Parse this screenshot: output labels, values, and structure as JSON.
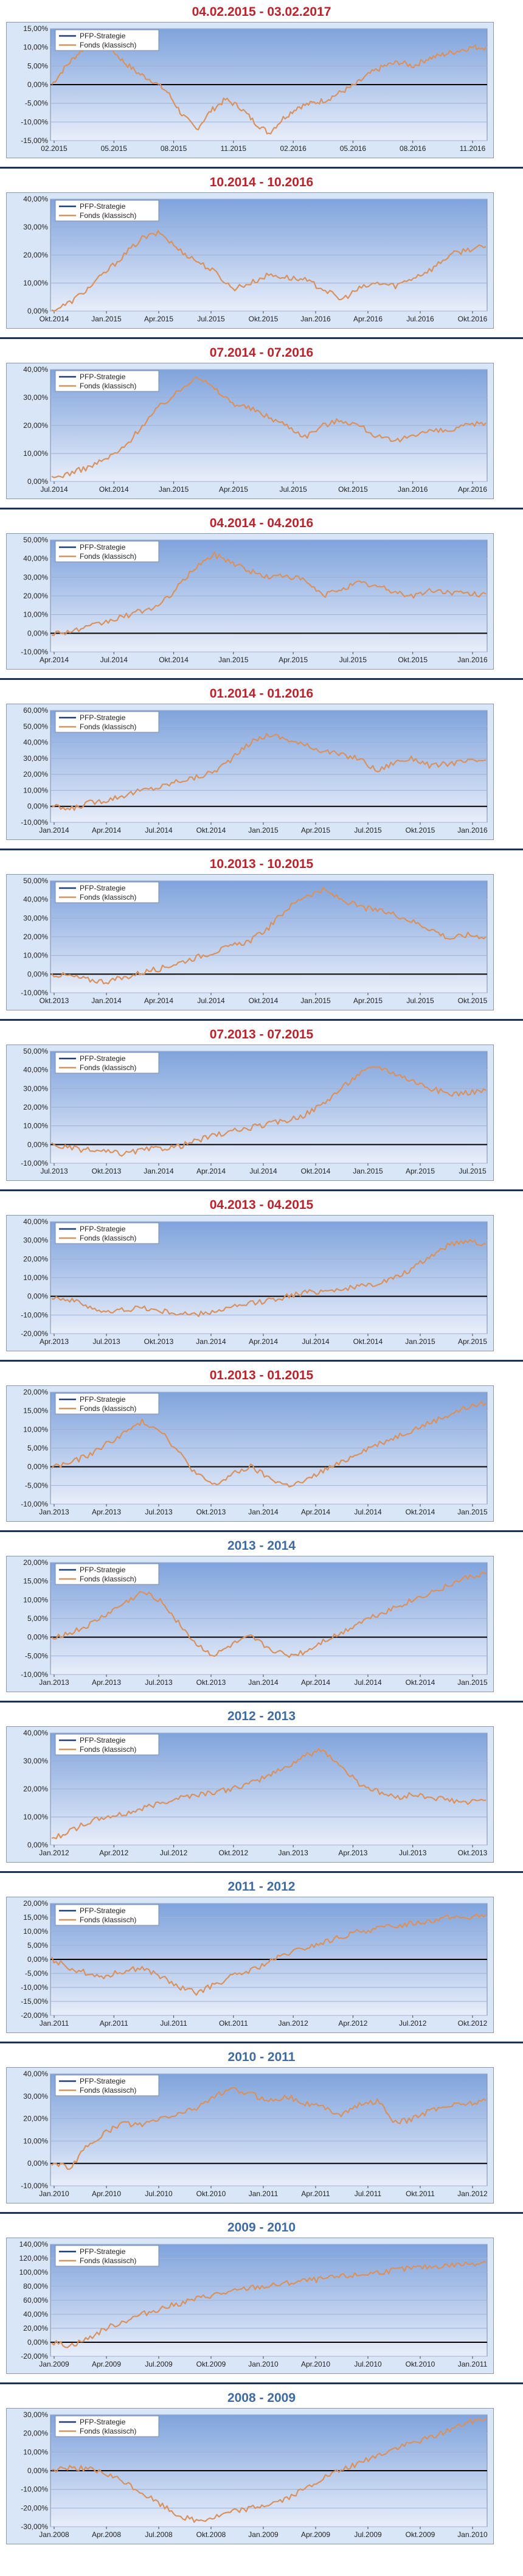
{
  "legend": [
    "PFP-Strategie",
    "Fonds (klassisch)"
  ],
  "colors": {
    "strategy": "#1f3d7a",
    "fonds": "#d9925e",
    "red_title": "#c0202a",
    "blue_title": "#3e6aa6",
    "bg_top": "#7fa3dc",
    "bg_bottom": "#e8eefa"
  },
  "charts": [
    {
      "title": "04.02.2015 - 03.02.2017",
      "chart_data": {
        "type": "line",
        "title": "04.02.2015 - 03.02.2017",
        "ylim": [
          -15,
          15
        ],
        "yticks": [
          "15,00%",
          "10,00%",
          "5,00%",
          "0,00%",
          "-5,00%",
          "-10,00%",
          "-15,00%"
        ],
        "xlabels": [
          "02.2015",
          "05.2015",
          "08.2015",
          "11.2015",
          "02.2016",
          "05.2016",
          "08.2016",
          "11.2016"
        ],
        "legend": [
          "PFP-Strategie",
          "Fonds (klassisch)"
        ],
        "series": [
          {
            "name": "Fonds (klassisch)",
            "values": [
              0,
              5,
              9,
              12,
              10,
              6,
              3,
              1,
              -2,
              -8,
              -12,
              -7,
              -4,
              -6,
              -10,
              -13,
              -9,
              -6,
              -5,
              -4,
              -2,
              0,
              3,
              5,
              6,
              5,
              7,
              8,
              9,
              10,
              10
            ]
          }
        ]
      }
    },
    {
      "title": "10.2014 - 10.2016",
      "chart_data": {
        "type": "line",
        "title": "10.2014 - 10.2016",
        "ylim": [
          0,
          40
        ],
        "yticks": [
          "40,00%",
          "30,00%",
          "20,00%",
          "10,00%",
          "0,00%"
        ],
        "xlabels": [
          "Okt.2014",
          "Jan.2015",
          "Apr.2015",
          "Jul.2015",
          "Okt.2015",
          "Jan.2016",
          "Apr.2016",
          "Jul.2016",
          "Okt.2016"
        ],
        "legend": [
          "PFP-Strategie",
          "Fonds (klassisch)"
        ],
        "series": [
          {
            "name": "Fonds (klassisch)",
            "values": [
              0,
              3,
              8,
              14,
              20,
              26,
              28,
              22,
              18,
              14,
              8,
              10,
              13,
              12,
              11,
              8,
              4,
              8,
              10,
              9,
              12,
              15,
              20,
              22,
              23
            ]
          }
        ]
      }
    },
    {
      "title": "07.2014 - 07.2016",
      "chart_data": {
        "type": "line",
        "title": "07.2014 - 07.2016",
        "ylim": [
          0,
          40
        ],
        "yticks": [
          "40,00%",
          "30,00%",
          "20,00%",
          "10,00%",
          "0,00%"
        ],
        "xlabels": [
          "Jul.2014",
          "Okt.2014",
          "Jan.2015",
          "Apr.2015",
          "Jul.2015",
          "Okt.2015",
          "Jan.2016",
          "Apr.2016"
        ],
        "legend": [
          "PFP-Strategie",
          "Fonds (klassisch)"
        ],
        "series": [
          {
            "name": "Fonds (klassisch)",
            "values": [
              1,
              3,
              5,
              8,
              12,
              20,
              27,
              32,
              38,
              33,
              28,
              26,
              23,
              20,
              16,
              20,
              22,
              20,
              16,
              14,
              17,
              18,
              18,
              20,
              21
            ]
          }
        ]
      }
    },
    {
      "title": "04.2014 - 04.2016",
      "chart_data": {
        "type": "line",
        "title": "04.2014 - 04.2016",
        "ylim": [
          -10,
          50
        ],
        "yticks": [
          "50,00%",
          "40,00%",
          "30,00%",
          "20,00%",
          "10,00%",
          "0,00%",
          "-10,00%"
        ],
        "xlabels": [
          "Apr.2014",
          "Jul.2014",
          "Okt.2014",
          "Jan.2015",
          "Apr.2015",
          "Jul.2015",
          "Okt.2015",
          "Jan.2016"
        ],
        "legend": [
          "PFP-Strategie",
          "Fonds (klassisch)"
        ],
        "series": [
          {
            "name": "Fonds (klassisch)",
            "values": [
              0,
              1,
              3,
              6,
              9,
              12,
              15,
              25,
              36,
              42,
              38,
              33,
              30,
              31,
              28,
              20,
              24,
              27,
              25,
              22,
              20,
              23,
              22,
              21,
              21
            ]
          }
        ]
      }
    },
    {
      "title": "01.2014 - 01.2016",
      "chart_data": {
        "type": "line",
        "title": "01.2014 - 01.2016",
        "ylim": [
          -10,
          60
        ],
        "yticks": [
          "60,00%",
          "50,00%",
          "40,00%",
          "30,00%",
          "20,00%",
          "10,00%",
          "0,00%",
          "-10,00%"
        ],
        "xlabels": [
          "Jan.2014",
          "Apr.2014",
          "Jul.2014",
          "Okt.2014",
          "Jan.2015",
          "Apr.2015",
          "Jul.2015",
          "Okt.2015",
          "Jan.2016"
        ],
        "legend": [
          "PFP-Strategie",
          "Fonds (klassisch)"
        ],
        "series": [
          {
            "name": "Fonds (klassisch)",
            "values": [
              0,
              -2,
              2,
              4,
              7,
              10,
              12,
              16,
              18,
              22,
              30,
              40,
              45,
              42,
              38,
              35,
              32,
              30,
              22,
              28,
              30,
              25,
              27,
              28,
              29
            ]
          }
        ]
      }
    },
    {
      "title": "10.2013 - 10.2015",
      "chart_data": {
        "type": "line",
        "title": "10.2013 - 10.2015",
        "ylim": [
          -10,
          50
        ],
        "yticks": [
          "50,00%",
          "40,00%",
          "30,00%",
          "20,00%",
          "10,00%",
          "0,00%",
          "-10,00%"
        ],
        "xlabels": [
          "Okt.2013",
          "Jan.2014",
          "Apr.2014",
          "Jul.2014",
          "Okt.2014",
          "Jan.2015",
          "Apr.2015",
          "Jul.2015",
          "Okt.2015"
        ],
        "legend": [
          "PFP-Strategie",
          "Fonds (klassisch)"
        ],
        "series": [
          {
            "name": "Fonds (klassisch)",
            "values": [
              0,
              -1,
              -3,
              -4,
              -2,
              1,
              3,
              6,
              9,
              12,
              15,
              18,
              25,
              35,
              42,
              45,
              40,
              36,
              34,
              32,
              28,
              24,
              19,
              21,
              20
            ]
          }
        ]
      }
    },
    {
      "title": "07.2013 - 07.2015",
      "chart_data": {
        "type": "line",
        "title": "07.2013 - 07.2015",
        "ylim": [
          -10,
          50
        ],
        "yticks": [
          "50,00%",
          "40,00%",
          "30,00%",
          "20,00%",
          "10,00%",
          "0,00%",
          "-10,00%"
        ],
        "xlabels": [
          "Jul.2013",
          "Okt.2013",
          "Jan.2014",
          "Apr.2014",
          "Jul.2014",
          "Okt.2014",
          "Jan.2015",
          "Apr.2015",
          "Jul.2015"
        ],
        "legend": [
          "PFP-Strategie",
          "Fonds (klassisch)"
        ],
        "series": [
          {
            "name": "Fonds (klassisch)",
            "values": [
              0,
              -2,
              -3,
              -4,
              -5,
              -3,
              -2,
              -1,
              2,
              5,
              7,
              9,
              11,
              13,
              16,
              22,
              30,
              38,
              42,
              38,
              34,
              30,
              27,
              28,
              29
            ]
          }
        ]
      }
    },
    {
      "title": "04.2013 - 04.2015",
      "chart_data": {
        "type": "line",
        "title": "04.2013 - 04.2015",
        "ylim": [
          -20,
          40
        ],
        "yticks": [
          "40,00%",
          "30,00%",
          "20,00%",
          "10,00%",
          "0,00%",
          "-10,00%",
          "-20,00%"
        ],
        "xlabels": [
          "Apr.2013",
          "Jul.2013",
          "Okt.2013",
          "Jan.2014",
          "Apr.2014",
          "Jul.2014",
          "Okt.2014",
          "Jan.2015",
          "Apr.2015"
        ],
        "legend": [
          "PFP-Strategie",
          "Fonds (klassisch)"
        ],
        "series": [
          {
            "name": "Fonds (klassisch)",
            "values": [
              0,
              -2,
              -5,
              -9,
              -7,
              -6,
              -8,
              -9,
              -10,
              -8,
              -6,
              -4,
              -2,
              0,
              2,
              3,
              4,
              5,
              7,
              10,
              15,
              22,
              28,
              30,
              28
            ]
          }
        ]
      }
    },
    {
      "title": "01.2013 - 01.2015",
      "chart_data": {
        "type": "line",
        "title": "01.2013 - 01.2015",
        "ylim": [
          -10,
          20
        ],
        "yticks": [
          "20,00%",
          "15,00%",
          "10,00%",
          "5,00%",
          "0,00%",
          "-5,00%",
          "-10,00%"
        ],
        "xlabels": [
          "Jan.2013",
          "Apr.2013",
          "Jul.2013",
          "Okt.2013",
          "Jan.2014",
          "Apr.2014",
          "Jul.2014",
          "Okt.2014",
          "Jan.2015"
        ],
        "legend": [
          "PFP-Strategie",
          "Fonds (klassisch)"
        ],
        "series": [
          {
            "name": "Fonds (klassisch)",
            "values": [
              0,
              1,
              3,
              6,
              9,
              12,
              10,
              4,
              -2,
              -5,
              -2,
              0,
              -3,
              -5,
              -4,
              -1,
              1,
              4,
              6,
              8,
              10,
              12,
              14,
              16,
              17
            ]
          }
        ]
      }
    },
    {
      "title": "2013 - 2014",
      "chart_data": {
        "type": "line",
        "title": "2013 - 2014",
        "ylim": [
          -10,
          20
        ],
        "yticks": [
          "20,00%",
          "15,00%",
          "10,00%",
          "5,00%",
          "0,00%",
          "-5,00%",
          "-10,00%"
        ],
        "xlabels": [
          "Jan.2013",
          "Apr.2013",
          "Jul.2013",
          "Okt.2013",
          "Jan.2014",
          "Apr.2014",
          "Jul.2014",
          "Okt.2014",
          "Jan.2015"
        ],
        "legend": [
          "PFP-Strategie",
          "Fonds (klassisch)"
        ],
        "series": [
          {
            "name": "Fonds (klassisch)",
            "values": [
              0,
              1,
              3,
              6,
              9,
              12,
              10,
              4,
              -2,
              -5,
              -2,
              0,
              -3,
              -5,
              -4,
              -1,
              1,
              4,
              6,
              8,
              10,
              12,
              14,
              16,
              17
            ]
          }
        ]
      }
    },
    {
      "title": "2012 - 2013",
      "chart_data": {
        "type": "line",
        "title": "2012 - 2013",
        "ylim": [
          0,
          40
        ],
        "yticks": [
          "40,00%",
          "30,00%",
          "20,00%",
          "10,00%",
          "0,00%"
        ],
        "xlabels": [
          "Jan.2012",
          "Apr.2012",
          "Jul.2012",
          "Okt.2012",
          "Jan.2013",
          "Apr.2013",
          "Jul.2013",
          "Okt.2013"
        ],
        "legend": [
          "PFP-Strategie",
          "Fonds (klassisch)"
        ],
        "series": [
          {
            "name": "Fonds (klassisch)",
            "values": [
              2,
              5,
              8,
              10,
              11,
              13,
              15,
              17,
              18,
              19,
              20,
              22,
              25,
              28,
              32,
              34,
              28,
              22,
              19,
              17,
              18,
              17,
              16,
              15,
              16
            ]
          }
        ]
      }
    },
    {
      "title": "2011 - 2012",
      "chart_data": {
        "type": "line",
        "title": "2011 - 2012",
        "ylim": [
          -20,
          20
        ],
        "yticks": [
          "20,00%",
          "15,00%",
          "10,00%",
          "5,00%",
          "0,00%",
          "-5,00%",
          "-10,00%",
          "-15,00%",
          "-20,00%"
        ],
        "xlabels": [
          "Jan.2011",
          "Apr.2011",
          "Jul.2011",
          "Okt.2011",
          "Jan.2012",
          "Apr.2012",
          "Jul.2012",
          "Okt.2012"
        ],
        "legend": [
          "PFP-Strategie",
          "Fonds (klassisch)"
        ],
        "series": [
          {
            "name": "Fonds (klassisch)",
            "values": [
              0,
              -3,
              -5,
              -6,
              -4,
              -3,
              -6,
              -10,
              -12,
              -9,
              -6,
              -4,
              -1,
              2,
              4,
              6,
              8,
              10,
              11,
              12,
              13,
              14,
              15,
              15,
              16
            ]
          }
        ]
      }
    },
    {
      "title": "2010 - 2011",
      "chart_data": {
        "type": "line",
        "title": "2010 - 2011",
        "ylim": [
          -10,
          40
        ],
        "yticks": [
          "40,00%",
          "30,00%",
          "20,00%",
          "10,00%",
          "0,00%",
          "-10,00%"
        ],
        "xlabels": [
          "Jan.2010",
          "Apr.2010",
          "Jul.2010",
          "Okt.2010",
          "Jan.2011",
          "Apr.2011",
          "Jul.2011",
          "Okt.2011",
          "Jan.2012"
        ],
        "legend": [
          "PFP-Strategie",
          "Fonds (klassisch)"
        ],
        "series": [
          {
            "name": "Fonds (klassisch)",
            "values": [
              0,
              -2,
              8,
              14,
              18,
              17,
              20,
              22,
              25,
              30,
              33,
              31,
              28,
              30,
              27,
              25,
              22,
              26,
              28,
              18,
              20,
              24,
              26,
              27,
              28
            ]
          }
        ]
      }
    },
    {
      "title": "2009 - 2010",
      "chart_data": {
        "type": "line",
        "title": "2009 - 2010",
        "ylim": [
          -20,
          140
        ],
        "yticks": [
          "140,00%",
          "120,00%",
          "100,00%",
          "80,00%",
          "60,00%",
          "40,00%",
          "20,00%",
          "0,00%",
          "-20,00%"
        ],
        "xlabels": [
          "Jan.2009",
          "Apr.2009",
          "Jul.2009",
          "Okt.2009",
          "Jan.2010",
          "Apr.2010",
          "Jul.2010",
          "Okt.2010",
          "Jan.2011"
        ],
        "legend": [
          "PFP-Strategie",
          "Fonds (klassisch)"
        ],
        "series": [
          {
            "name": "Fonds (klassisch)",
            "values": [
              0,
              -5,
              5,
              20,
              30,
              40,
              48,
              55,
              62,
              68,
              72,
              78,
              80,
              84,
              88,
              90,
              94,
              96,
              100,
              103,
              106,
              108,
              110,
              112,
              115
            ]
          }
        ]
      }
    },
    {
      "title": "2008 - 2009",
      "chart_data": {
        "type": "line",
        "title": "2008 - 2009",
        "ylim": [
          -30,
          30
        ],
        "yticks": [
          "30,00%",
          "20,00%",
          "10,00%",
          "0,00%",
          "-10,00%",
          "-20,00%",
          "-30,00%"
        ],
        "xlabels": [
          "Jan.2008",
          "Apr.2008",
          "Jul.2008",
          "Okt.2008",
          "Jan.2009",
          "Apr.2009",
          "Jul.2009",
          "Okt.2009",
          "Jan.2010"
        ],
        "legend": [
          "PFP-Strategie",
          "Fonds (klassisch)"
        ],
        "series": [
          {
            "name": "Fonds (klassisch)",
            "values": [
              0,
              2,
              1,
              -2,
              -6,
              -12,
              -18,
              -24,
              -27,
              -25,
              -22,
              -20,
              -18,
              -15,
              -10,
              -4,
              0,
              4,
              8,
              12,
              15,
              18,
              22,
              26,
              28
            ]
          }
        ]
      }
    }
  ]
}
